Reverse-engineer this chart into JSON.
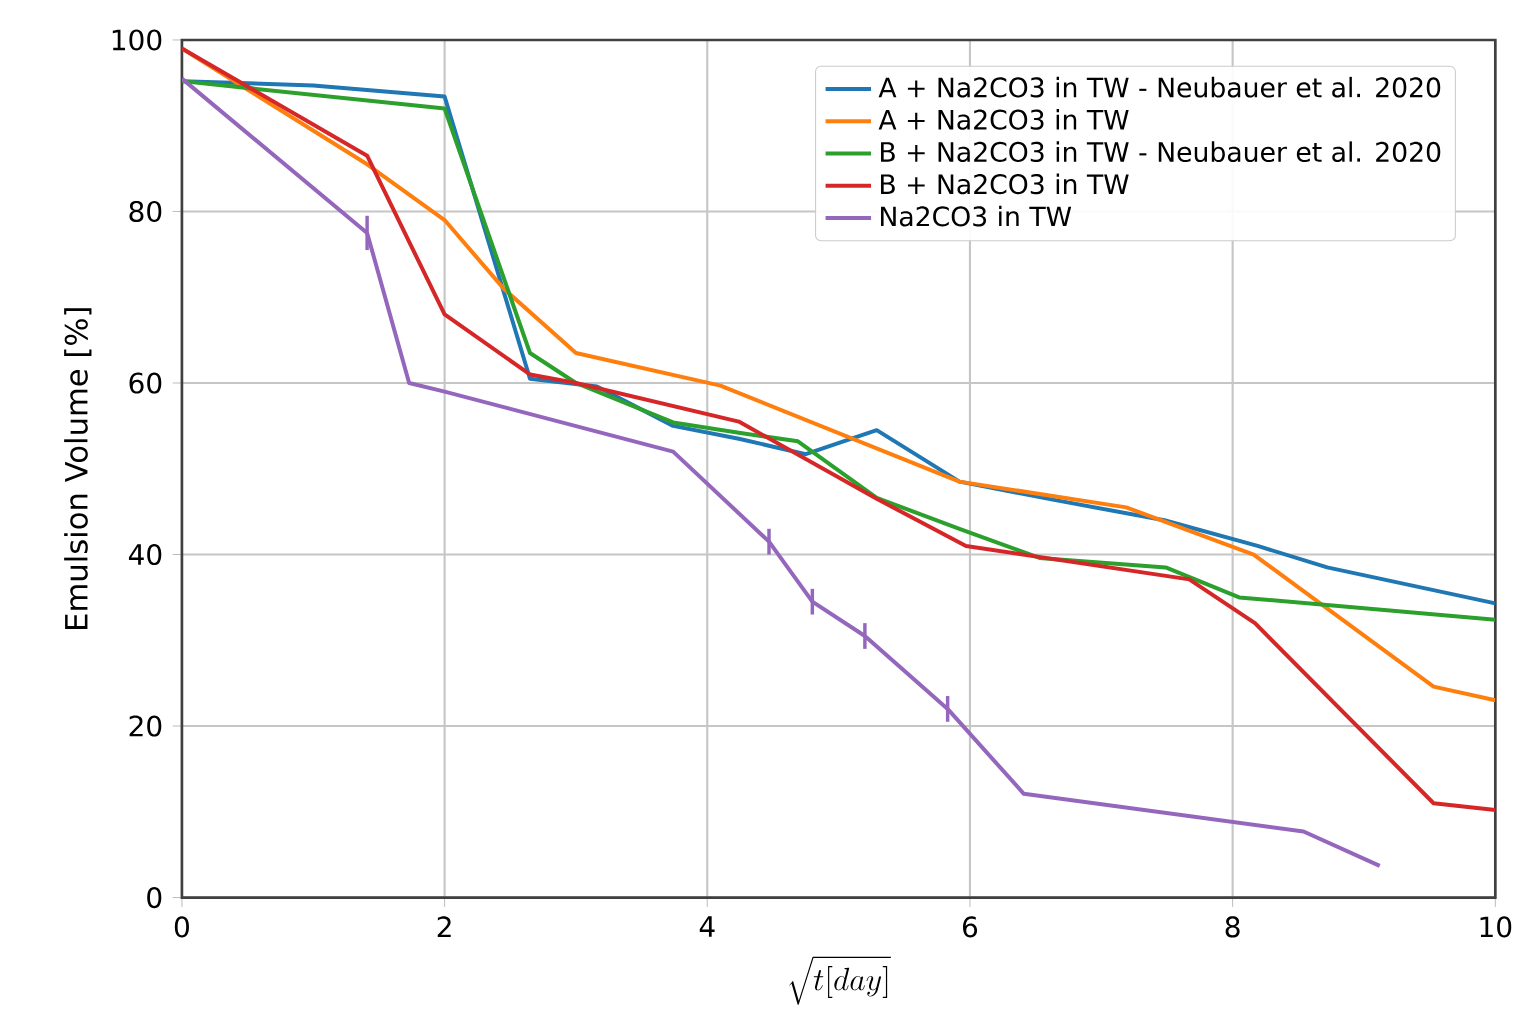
{
  "chart_data": {
    "type": "line",
    "xlabel": "\\sqrt{t[day]}",
    "ylabel": "Emulsion Volume [%]",
    "xlim": [
      0,
      10
    ],
    "ylim": [
      0,
      100
    ],
    "xticks": [
      0,
      2,
      4,
      6,
      8,
      10
    ],
    "yticks": [
      0,
      20,
      40,
      60,
      80,
      100
    ],
    "grid": true,
    "legend": "top right",
    "marker": "none",
    "line_style": "solid",
    "series": [
      {
        "name": "A + Na2CO3 in TW - Neubauer et al. 2020",
        "color": "#1f77b4",
        "x": [
          0,
          1,
          2,
          2.65,
          3.16,
          3.74,
          4.24,
          4.75,
          5.29,
          5.92,
          6.63,
          7.48,
          8.19,
          8.72,
          10
        ],
        "values": [
          95.2,
          94.7,
          93.4,
          60.5,
          59.6,
          55,
          53.5,
          51.7,
          54.5,
          48.5,
          46.4,
          44,
          41,
          38.5,
          34.3
        ]
      },
      {
        "name": "A + Na2CO3 in TW",
        "color": "#ff7f0e",
        "x": [
          0,
          1.41,
          2,
          2.45,
          3,
          4.1,
          5.92,
          7.19,
          8.16,
          9.53,
          10
        ],
        "values": [
          99,
          85.5,
          79,
          71,
          63.5,
          59.7,
          48.5,
          45.5,
          40,
          24.6,
          23
        ]
      },
      {
        "name": "B + Na2CO3 in TW - Neubauer et al. 2020",
        "color": "#2ca02c",
        "x": [
          0,
          2,
          2.65,
          3,
          3.74,
          4.24,
          4.69,
          5.29,
          5.92,
          6.53,
          7.49,
          8.05,
          10
        ],
        "values": [
          95.2,
          92,
          63.5,
          60,
          55.4,
          54.2,
          53.2,
          46.6,
          43,
          39.6,
          38.5,
          35,
          32.4
        ]
      },
      {
        "name": "B + Na2CO3 in TW",
        "color": "#d62728",
        "x": [
          0,
          1.41,
          2,
          2.65,
          3,
          4.24,
          5.29,
          5.97,
          7.67,
          8.17,
          9.53,
          10
        ],
        "values": [
          99,
          86.5,
          68,
          61,
          60,
          55.5,
          46.5,
          41,
          37.1,
          32,
          11,
          10.2
        ]
      },
      {
        "name": "Na2CO3 in TW",
        "color": "#9467bd",
        "x": [
          0,
          1.41,
          1.73,
          2,
          3.74,
          4.47,
          4.8,
          5.2,
          5.83,
          6.41,
          8.54,
          9.12
        ],
        "values": [
          95.5,
          77.5,
          60,
          59,
          52,
          41.5,
          34.5,
          30.5,
          22,
          12.1,
          7.7,
          3.7
        ],
        "errors": [
          null,
          2,
          null,
          null,
          null,
          1.5,
          1.5,
          1.5,
          1.5,
          null,
          null,
          null
        ]
      }
    ]
  }
}
